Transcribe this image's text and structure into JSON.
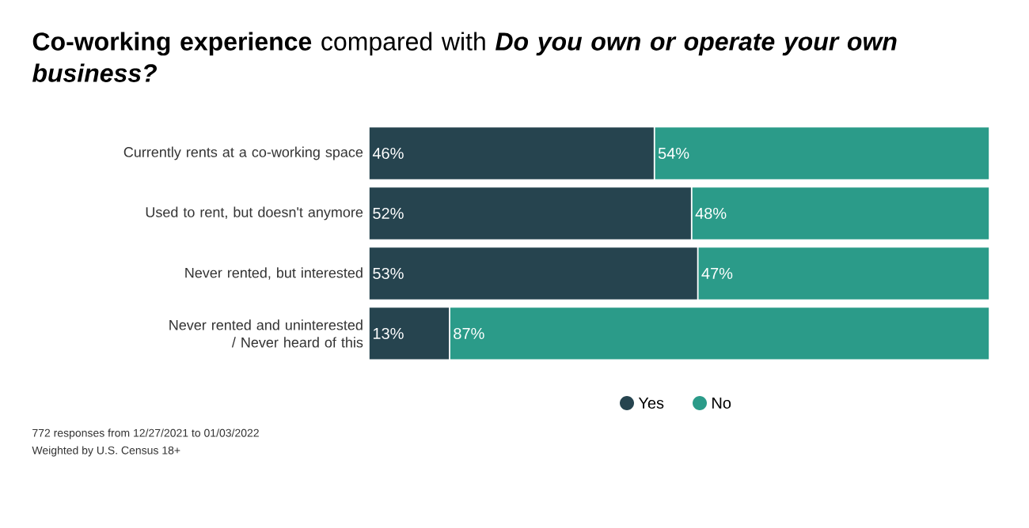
{
  "chart_data": {
    "type": "bar",
    "orientation": "horizontal",
    "stacked": true,
    "legend": "bottom",
    "title": "**Co-working experience** compared with *Do you own or operate your own business?*",
    "categories": [
      "Currently rents at a co-working space",
      "Used to rent, but doesn't anymore",
      "Never rented, but interested",
      "Never rented and uninterested / Never heard of this"
    ],
    "series": [
      {
        "name": "Yes",
        "color": "#26444f",
        "values": [
          46,
          52,
          53,
          13
        ],
        "value_labels": [
          "46%",
          "52%",
          "53%",
          "13%"
        ]
      },
      {
        "name": "No",
        "color": "#2b9b89",
        "values": [
          54,
          48,
          47,
          87
        ],
        "value_labels": [
          "54%",
          "48%",
          "47%",
          "87%"
        ]
      }
    ],
    "annotations": [
      "772 responses from 12/27/2021 to 01/03/2022",
      "Weighted by U.S. Census 18+"
    ]
  }
}
